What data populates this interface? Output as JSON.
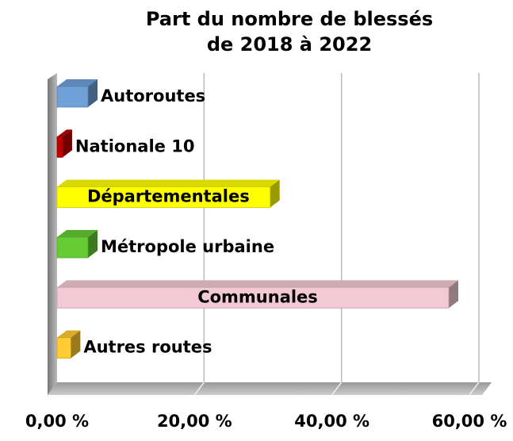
{
  "chart_data": {
    "type": "bar",
    "orientation": "horizontal",
    "title": "Part du nombre de blessés de 2018 à 2022",
    "categories": [
      "Autoroutes",
      "Nationale 10",
      "Départementales",
      "Métropole urbaine",
      "Communales",
      "Autres routes"
    ],
    "series": [
      {
        "name": "Part du nombre de blessés",
        "values": [
          4.5,
          0.8,
          31,
          4.5,
          57,
          2
        ],
        "colors": [
          "#6fa0d8",
          "#c00000",
          "#ffff00",
          "#66cc33",
          "#f2c9d5",
          "#ffcc33"
        ]
      }
    ],
    "xlim": [
      0,
      60
    ],
    "xticks": [
      {
        "value": 0,
        "label": "0,00 %"
      },
      {
        "value": 20,
        "label": "20,00 %"
      },
      {
        "value": 40,
        "label": "40,00 %"
      },
      {
        "value": 60,
        "label": "60,00 %"
      }
    ],
    "grid": true
  }
}
